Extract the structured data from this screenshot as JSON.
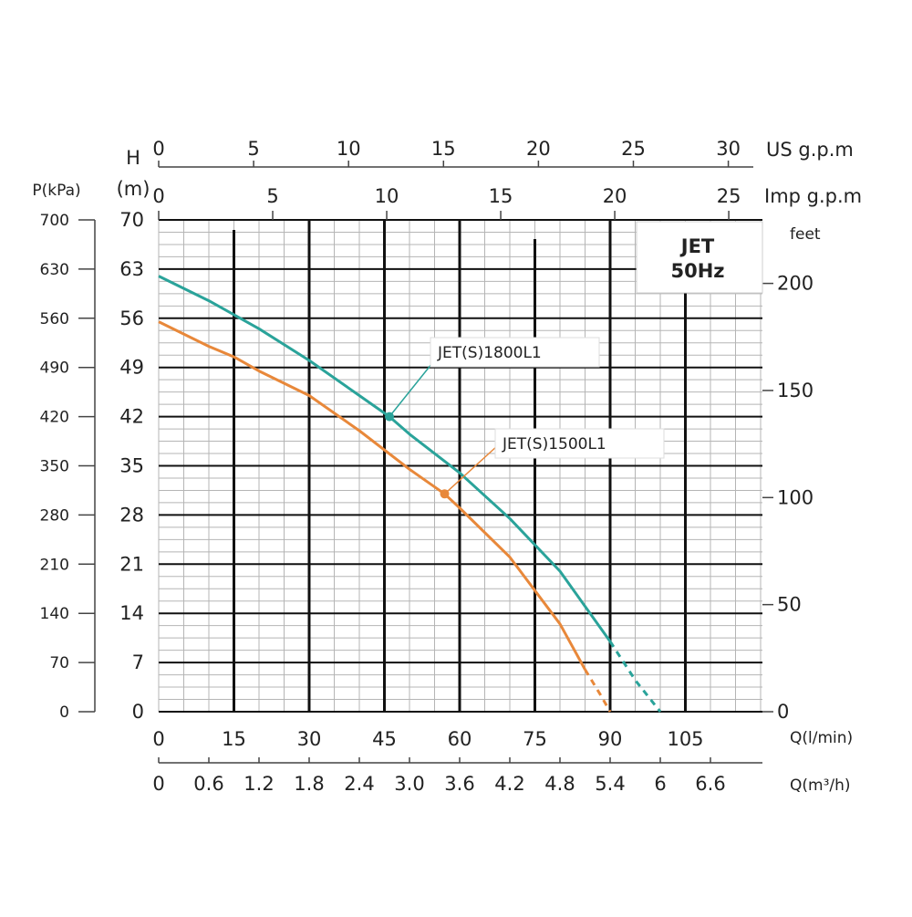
{
  "box": {
    "line1": "JET",
    "line2": "50Hz"
  },
  "axes": {
    "pressure_label": "P(kPa)",
    "head_label_line1": "H",
    "head_label_line2": "(m)",
    "us_gpm_label": "US g.p.m",
    "imp_gpm_label": "Imp g.p.m",
    "feet_label": "feet",
    "q_lmin_label": "Q(l/min)",
    "q_m3h_label": "Q(m³/h)",
    "pressure_ticks": [
      "0",
      "70",
      "140",
      "210",
      "280",
      "350",
      "420",
      "490",
      "560",
      "630",
      "700"
    ],
    "head_ticks": [
      "0",
      "7",
      "14",
      "21",
      "28",
      "35",
      "42",
      "49",
      "56",
      "63",
      "70"
    ],
    "feet_ticks": [
      "0",
      "50",
      "100",
      "150",
      "200"
    ],
    "us_gpm_ticks": [
      "0",
      "5",
      "10",
      "15",
      "20",
      "25",
      "30"
    ],
    "imp_gpm_ticks": [
      "0",
      "5",
      "10",
      "15",
      "20",
      "25"
    ],
    "q_lmin_ticks": [
      "0",
      "15",
      "30",
      "45",
      "60",
      "75",
      "90",
      "105"
    ],
    "q_m3h_ticks": [
      "0",
      "0.6",
      "1.2",
      "1.8",
      "2.4",
      "3.0",
      "3.6",
      "4.2",
      "4.8",
      "5.4",
      "6",
      "6.6"
    ]
  },
  "colors": {
    "curve_1800": "#2aa39a",
    "curve_1500": "#e8883a",
    "grid_major": "#111111",
    "grid_minor": "#b5b5b5"
  },
  "chart_data": {
    "type": "line",
    "xlabel": "Q(l/min)",
    "ylabel": "H (m)",
    "xlim": [
      0,
      120
    ],
    "ylim": [
      0,
      70
    ],
    "grid": true,
    "series": [
      {
        "name": "JET(S)1800L1",
        "x": [
          0,
          10,
          15,
          20,
          30,
          40,
          46,
          50,
          60,
          70,
          80,
          90,
          95,
          100
        ],
        "y": [
          62,
          58.5,
          56.5,
          54.5,
          50,
          45,
          42,
          39.5,
          34,
          27.5,
          20,
          10,
          4.5,
          0
        ],
        "marker": {
          "x": 46,
          "y": 42
        }
      },
      {
        "name": "JET(S)1500L1",
        "x": [
          0,
          10,
          15,
          20,
          30,
          40,
          50,
          57,
          60,
          70,
          80,
          85,
          88,
          90
        ],
        "y": [
          55.5,
          52,
          50.5,
          48.5,
          45,
          40,
          34.5,
          31,
          29,
          22,
          12.5,
          6,
          2.5,
          0
        ],
        "marker": {
          "x": 57,
          "y": 31
        }
      }
    ]
  }
}
